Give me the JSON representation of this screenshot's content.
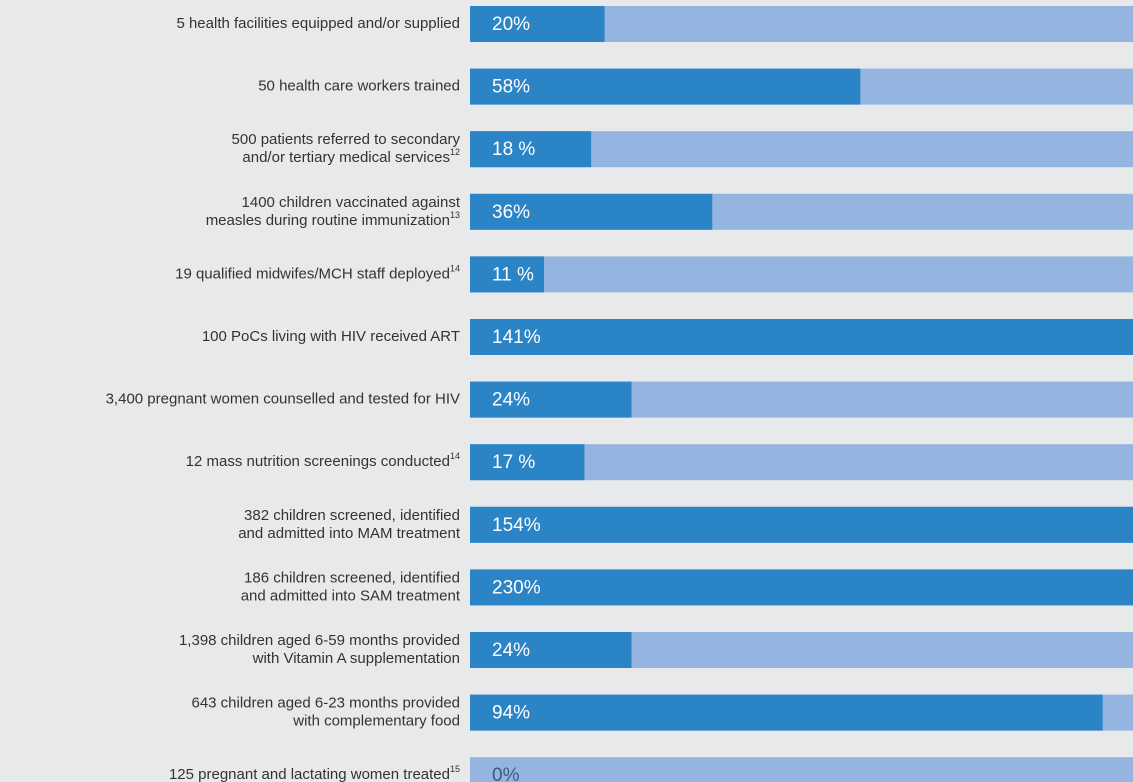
{
  "chart_data": {
    "type": "progress_bar",
    "categories": [
      [
        "5 health facilities equipped and/or supplied"
      ],
      [
        "50 health care workers trained"
      ],
      [
        "500 patients referred to secondary",
        "and/or tertiary medical services"
      ],
      [
        "1400 children vaccinated against",
        "measles during routine immunization"
      ],
      [
        "19 qualified midwifes/MCH staff deployed"
      ],
      [
        "100 PoCs living with HIV received ART"
      ],
      [
        "3,400 pregnant women counselled and tested for HIV"
      ],
      [
        "12 mass nutrition screenings conducted"
      ],
      [
        "382 children screened, identified",
        "and admitted into MAM treatment"
      ],
      [
        "186 children screened, identified",
        "and admitted into SAM treatment"
      ],
      [
        "1,398 children aged 6-59 months provided",
        "with Vitamin A supplementation"
      ],
      [
        "643 children aged 6-23 months provided",
        "with complementary food"
      ],
      [
        "125 pregnant and lactating women treated"
      ]
    ],
    "footnotes": [
      null,
      null,
      "12",
      "13",
      "14",
      null,
      null,
      "14",
      null,
      null,
      null,
      null,
      "15"
    ],
    "values": [
      20,
      58,
      18,
      36,
      11,
      141,
      24,
      17,
      154,
      230,
      24,
      94,
      0
    ],
    "value_labels": [
      "20%",
      "58%",
      "18 %",
      "36%",
      "11 %",
      "141%",
      "24%",
      "17 %",
      "154%",
      "230%",
      "24%",
      "94%",
      "0%"
    ],
    "xlim": [
      0,
      100
    ],
    "color": "#2b84c6",
    "track_color": "#93b5e0"
  }
}
